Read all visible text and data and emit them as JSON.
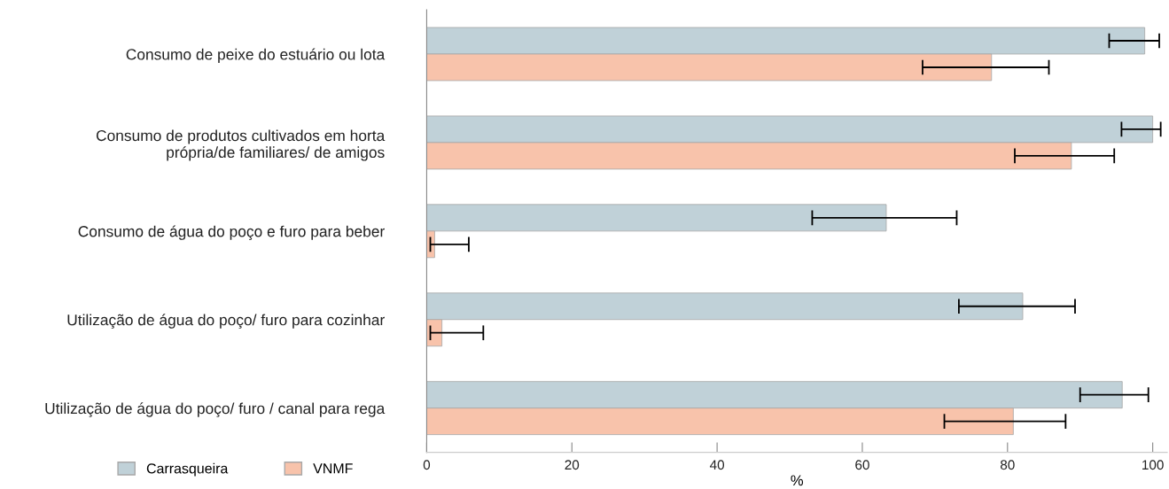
{
  "chart_data": {
    "type": "bar",
    "orientation": "horizontal",
    "xlabel": "%",
    "categories": [
      "Consumo de peixe do estuário ou lota",
      "Consumo de produtos cultivados em horta\nprópria/de familiares/ de amigos",
      "Consumo de água do poço e furo para beber",
      "Utilização de água do poço/ furo para cozinhar",
      "Utilização de água do poço/ furo / canal para rega"
    ],
    "series": [
      {
        "name": "Carrasqueira",
        "color": "#c0d1d8",
        "values": [
          98.9,
          100,
          63.3,
          82.1,
          95.8
        ],
        "errors": [
          [
            94.0,
            100.9
          ],
          [
            95.7,
            101.1
          ],
          [
            53.1,
            73.0
          ],
          [
            73.3,
            89.3
          ],
          [
            90.0,
            99.4
          ]
        ]
      },
      {
        "name": "VNMF",
        "color": "#f8c3ab",
        "values": [
          77.8,
          88.8,
          1.1,
          2.1,
          80.8
        ],
        "errors": [
          [
            68.3,
            85.7
          ],
          [
            81.0,
            94.7
          ],
          [
            0.5,
            5.8
          ],
          [
            0.5,
            7.8
          ],
          [
            71.3,
            88.0
          ]
        ]
      }
    ],
    "xlim": [
      0,
      102
    ],
    "xticks": [
      0,
      20,
      40,
      60,
      80,
      100
    ],
    "grid": false,
    "legend": "bottom left"
  }
}
